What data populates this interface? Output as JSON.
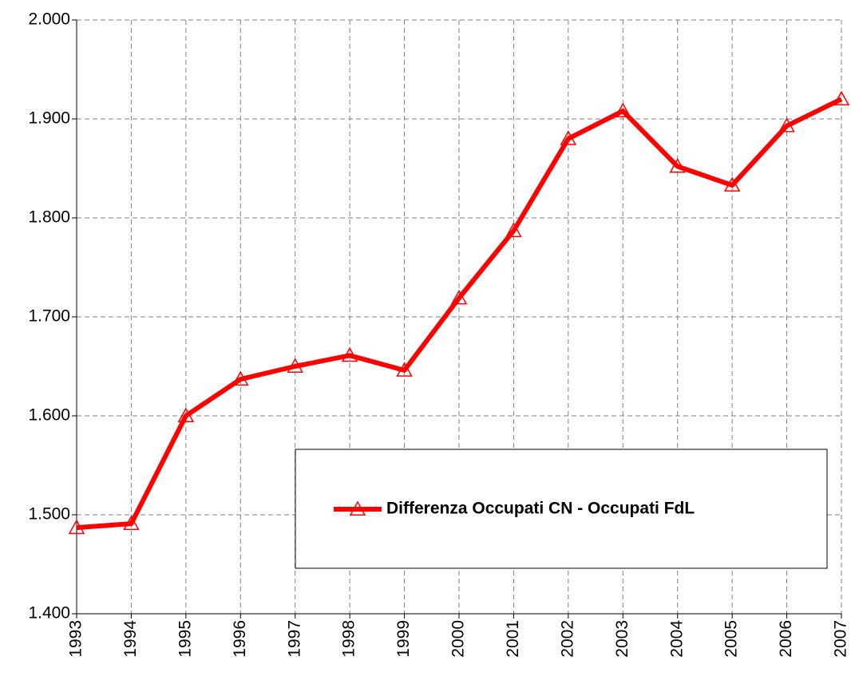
{
  "chart_data": {
    "type": "line",
    "categories": [
      "1993",
      "1994",
      "1995",
      "1996",
      "1997",
      "1998",
      "1999",
      "2000",
      "2001",
      "2002",
      "2003",
      "2004",
      "2005",
      "2006",
      "2007"
    ],
    "series": [
      {
        "name": "Differenza Occupati CN - Occupati FdL",
        "color": "#ff0000",
        "values": [
          1487,
          1491,
          1600,
          1637,
          1650,
          1661,
          1646,
          1719,
          1787,
          1880,
          1908,
          1852,
          1833,
          1893,
          1920
        ]
      }
    ],
    "ylim": [
      1400,
      2000
    ],
    "yticks": [
      {
        "value": 1400,
        "label": "1.400"
      },
      {
        "value": 1500,
        "label": "1.500"
      },
      {
        "value": 1600,
        "label": "1.600"
      },
      {
        "value": 1700,
        "label": "1.700"
      },
      {
        "value": 1800,
        "label": "1.800"
      },
      {
        "value": 1900,
        "label": "1.900"
      },
      {
        "value": 2000,
        "label": "2.000"
      }
    ],
    "grid": true
  }
}
